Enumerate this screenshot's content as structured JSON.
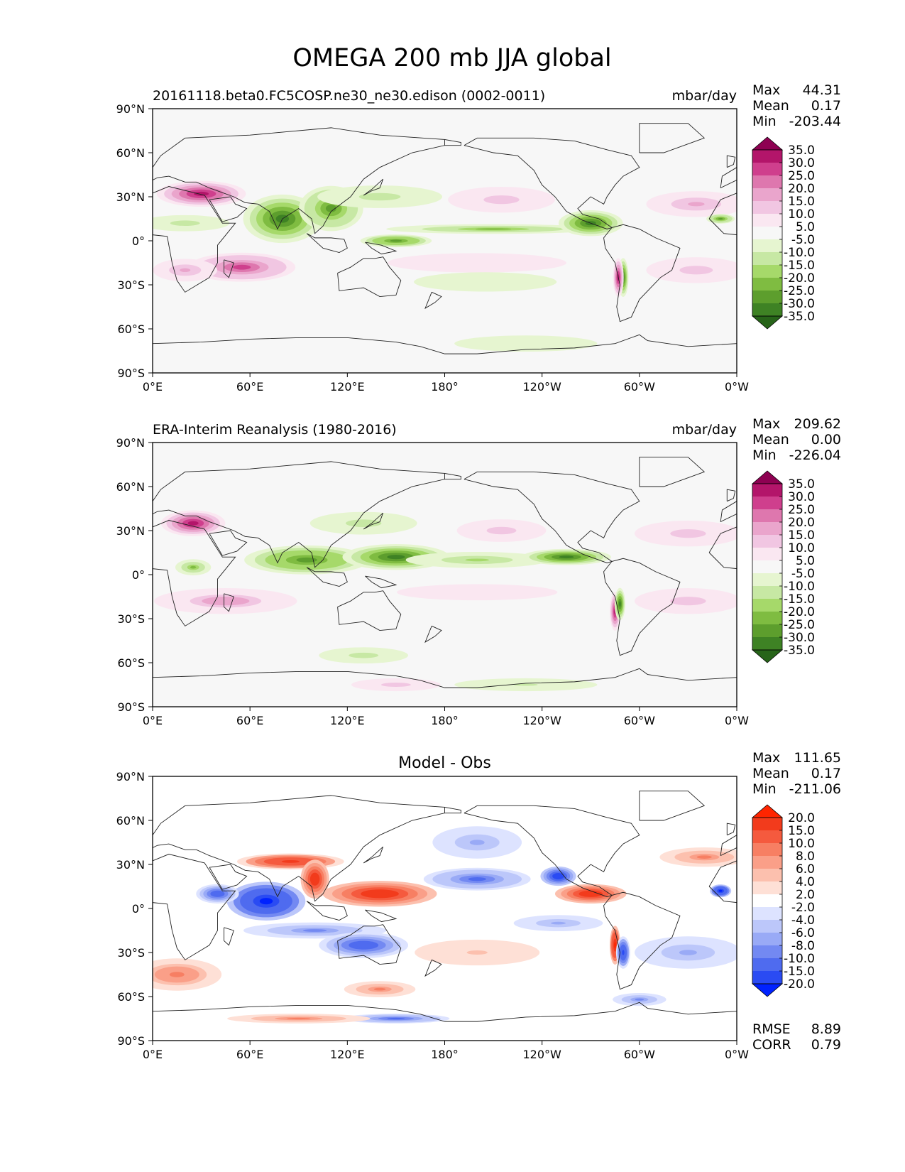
{
  "figure": {
    "title": "OMEGA 200 mb JJA global"
  },
  "axes": {
    "lon_ticks": [
      "0°E",
      "60°E",
      "120°E",
      "180°",
      "120°W",
      "60°W",
      "0°W"
    ],
    "lat_ticks": [
      "90°N",
      "60°N",
      "30°N",
      "0°",
      "30°S",
      "60°S",
      "90°S"
    ]
  },
  "chart_data": [
    {
      "type": "heatmap",
      "id": "model",
      "subtitle_left": "20161118.beta0.FC5COSP.ne30_ne30.edison (0002-0011)",
      "subtitle_center": "",
      "units": "mbar/day",
      "stats": [
        {
          "label": "Max",
          "value": "44.31"
        },
        {
          "label": "Mean",
          "value": "0.17"
        },
        {
          "label": "Min",
          "value": "-203.44"
        }
      ],
      "colorbar": {
        "levels": [
          "35.0",
          "30.0",
          "25.0",
          "20.0",
          "15.0",
          "10.0",
          "5.0",
          "-5.0",
          "-10.0",
          "-15.0",
          "-20.0",
          "-25.0",
          "-30.0",
          "-35.0"
        ],
        "colors": [
          "#8e0152",
          "#b3156a",
          "#cf3f8d",
          "#de77ae",
          "#eaa5cc",
          "#f1c6e2",
          "#fae7f1",
          "#f7f7f7",
          "#e6f5d0",
          "#c7e8a4",
          "#a6d96a",
          "#7fbc41",
          "#5d9e2d",
          "#3e8224",
          "#276419"
        ]
      },
      "blobs": [
        {
          "lon": 30,
          "lat": 32,
          "rlon": 25,
          "rlat": 8,
          "v": 32
        },
        {
          "lon": 55,
          "lat": -18,
          "rlon": 30,
          "rlat": 9,
          "v": 26
        },
        {
          "lon": 20,
          "lat": -20,
          "rlon": 18,
          "rlat": 7,
          "v": 16
        },
        {
          "lon": 20,
          "lat": 12,
          "rlon": 25,
          "rlat": 5,
          "v": -14
        },
        {
          "lon": 80,
          "lat": 15,
          "rlon": 22,
          "rlat": 15,
          "v": -33
        },
        {
          "lon": 110,
          "lat": 22,
          "rlon": 18,
          "rlat": 14,
          "v": -25
        },
        {
          "lon": 140,
          "lat": 30,
          "rlon": 35,
          "rlat": 7,
          "v": -12
        },
        {
          "lon": 150,
          "lat": 0,
          "rlon": 20,
          "rlat": 4,
          "v": -28
        },
        {
          "lon": 210,
          "lat": 8,
          "rlon": 60,
          "rlat": 3,
          "v": -20
        },
        {
          "lon": 270,
          "lat": 12,
          "rlon": 18,
          "rlat": 8,
          "v": -30
        },
        {
          "lon": 290,
          "lat": -25,
          "rlon": 3,
          "rlat": 12,
          "v": -30
        },
        {
          "lon": 287,
          "lat": -25,
          "rlon": 3,
          "rlat": 12,
          "v": 32
        },
        {
          "lon": 215,
          "lat": 28,
          "rlon": 30,
          "rlat": 8,
          "v": 12
        },
        {
          "lon": 335,
          "lat": 25,
          "rlon": 28,
          "rlat": 8,
          "v": 16
        },
        {
          "lon": 335,
          "lat": -20,
          "rlon": 28,
          "rlat": 8,
          "v": 14
        },
        {
          "lon": 200,
          "lat": -15,
          "rlon": 50,
          "rlat": 6,
          "v": 8
        },
        {
          "lon": 205,
          "lat": -28,
          "rlon": 40,
          "rlat": 6,
          "v": -7
        },
        {
          "lon": 230,
          "lat": -70,
          "rlon": 40,
          "rlat": 5,
          "v": -8
        },
        {
          "lon": 350,
          "lat": 15,
          "rlon": 8,
          "rlat": 3,
          "v": -25
        }
      ]
    },
    {
      "type": "heatmap",
      "id": "obs",
      "subtitle_left": "ERA-Interim Reanalysis (1980-2016)",
      "subtitle_center": "",
      "units": "mbar/day",
      "stats": [
        {
          "label": "Max",
          "value": "209.62"
        },
        {
          "label": "Mean",
          "value": "0.00"
        },
        {
          "label": "Min",
          "value": "-226.04"
        }
      ],
      "colorbar": {
        "levels": [
          "35.0",
          "30.0",
          "25.0",
          "20.0",
          "15.0",
          "10.0",
          "5.0",
          "-5.0",
          "-10.0",
          "-15.0",
          "-20.0",
          "-25.0",
          "-30.0",
          "-35.0"
        ],
        "colors": [
          "#8e0152",
          "#b3156a",
          "#cf3f8d",
          "#de77ae",
          "#eaa5cc",
          "#f1c6e2",
          "#fae7f1",
          "#f7f7f7",
          "#e6f5d0",
          "#c7e8a4",
          "#a6d96a",
          "#7fbc41",
          "#5d9e2d",
          "#3e8224",
          "#276419"
        ]
      },
      "blobs": [
        {
          "lon": 25,
          "lat": 35,
          "rlon": 18,
          "rlat": 8,
          "v": 34
        },
        {
          "lon": 45,
          "lat": -18,
          "rlon": 40,
          "rlat": 8,
          "v": 18
        },
        {
          "lon": 25,
          "lat": 5,
          "rlon": 10,
          "rlat": 5,
          "v": -20
        },
        {
          "lon": 95,
          "lat": 10,
          "rlon": 35,
          "rlat": 9,
          "v": -28
        },
        {
          "lon": 150,
          "lat": 12,
          "rlon": 30,
          "rlat": 8,
          "v": -30
        },
        {
          "lon": 200,
          "lat": 10,
          "rlon": 40,
          "rlat": 5,
          "v": -16
        },
        {
          "lon": 255,
          "lat": 12,
          "rlon": 25,
          "rlat": 5,
          "v": -30
        },
        {
          "lon": 130,
          "lat": 35,
          "rlon": 30,
          "rlat": 7,
          "v": -12
        },
        {
          "lon": 215,
          "lat": 30,
          "rlon": 25,
          "rlat": 7,
          "v": 14
        },
        {
          "lon": 285,
          "lat": -25,
          "rlon": 3,
          "rlat": 12,
          "v": 34
        },
        {
          "lon": 288,
          "lat": -20,
          "rlon": 3,
          "rlat": 10,
          "v": -30
        },
        {
          "lon": 330,
          "lat": 28,
          "rlon": 30,
          "rlat": 8,
          "v": 12
        },
        {
          "lon": 330,
          "lat": -18,
          "rlon": 30,
          "rlat": 8,
          "v": 12
        },
        {
          "lon": 130,
          "lat": -55,
          "rlon": 25,
          "rlat": 5,
          "v": -12
        },
        {
          "lon": 150,
          "lat": -75,
          "rlon": 25,
          "rlat": 4,
          "v": 12
        },
        {
          "lon": 230,
          "lat": -75,
          "rlon": 40,
          "rlat": 4,
          "v": -10
        },
        {
          "lon": 200,
          "lat": -12,
          "rlon": 45,
          "rlat": 5,
          "v": 9
        }
      ]
    },
    {
      "type": "heatmap",
      "id": "diff",
      "subtitle_left": "",
      "subtitle_center": "Model - Obs",
      "units": "",
      "stats": [
        {
          "label": "Max",
          "value": "111.65"
        },
        {
          "label": "Mean",
          "value": "0.17"
        },
        {
          "label": "Min",
          "value": "-211.06"
        }
      ],
      "metrics": [
        {
          "label": "RMSE",
          "value": "8.89"
        },
        {
          "label": "CORR",
          "value": "0.79"
        }
      ],
      "colorbar": {
        "levels": [
          "20.0",
          "15.0",
          "10.0",
          "8.0",
          "6.0",
          "4.0",
          "2.0",
          "-2.0",
          "-4.0",
          "-6.0",
          "-8.0",
          "-10.0",
          "-15.0",
          "-20.0"
        ],
        "colors": [
          "#ff2500",
          "#f23b1c",
          "#f55a3e",
          "#f77f63",
          "#fa9f88",
          "#fcc0ae",
          "#fee0d6",
          "#ffffff",
          "#dde3ff",
          "#bcc7fa",
          "#99aaf6",
          "#7389f2",
          "#4f6bef",
          "#2a4bf3",
          "#0022ff"
        ]
      },
      "blobs": [
        {
          "lon": 70,
          "lat": 5,
          "rlon": 22,
          "rlat": 12,
          "v": -20
        },
        {
          "lon": 140,
          "lat": 10,
          "rlon": 32,
          "rlat": 8,
          "v": 18
        },
        {
          "lon": 200,
          "lat": 20,
          "rlon": 30,
          "rlat": 7,
          "v": -10
        },
        {
          "lon": 100,
          "lat": -15,
          "rlon": 40,
          "rlat": 5,
          "v": -8
        },
        {
          "lon": 130,
          "lat": -25,
          "rlon": 25,
          "rlat": 8,
          "v": -12
        },
        {
          "lon": 270,
          "lat": 10,
          "rlon": 20,
          "rlat": 6,
          "v": 18
        },
        {
          "lon": 250,
          "lat": 22,
          "rlon": 10,
          "rlat": 6,
          "v": -18
        },
        {
          "lon": 285,
          "lat": -25,
          "rlon": 3,
          "rlat": 12,
          "v": 20
        },
        {
          "lon": 290,
          "lat": -30,
          "rlon": 4,
          "rlat": 10,
          "v": -15
        },
        {
          "lon": 350,
          "lat": 12,
          "rlon": 6,
          "rlat": 4,
          "v": -20
        },
        {
          "lon": 15,
          "lat": -45,
          "rlon": 25,
          "rlat": 10,
          "v": 9
        },
        {
          "lon": 85,
          "lat": 32,
          "rlon": 30,
          "rlat": 5,
          "v": 15
        },
        {
          "lon": 40,
          "lat": 10,
          "rlon": 12,
          "rlat": 6,
          "v": -12
        },
        {
          "lon": 100,
          "lat": 20,
          "rlon": 8,
          "rlat": 12,
          "v": 18
        },
        {
          "lon": 330,
          "lat": -30,
          "rlon": 30,
          "rlat": 10,
          "v": -6
        },
        {
          "lon": 200,
          "lat": -30,
          "rlon": 35,
          "rlat": 8,
          "v": 4
        },
        {
          "lon": 250,
          "lat": -10,
          "rlon": 25,
          "rlat": 5,
          "v": -6
        },
        {
          "lon": 140,
          "lat": -55,
          "rlon": 20,
          "rlat": 5,
          "v": 8
        },
        {
          "lon": 150,
          "lat": -75,
          "rlon": 30,
          "rlat": 3,
          "v": -10
        },
        {
          "lon": 90,
          "lat": -75,
          "rlon": 40,
          "rlat": 3,
          "v": 8
        },
        {
          "lon": 300,
          "lat": -62,
          "rlon": 15,
          "rlat": 4,
          "v": -8
        },
        {
          "lon": 200,
          "lat": 45,
          "rlon": 25,
          "rlat": 10,
          "v": -6
        },
        {
          "lon": 340,
          "lat": 35,
          "rlon": 25,
          "rlat": 6,
          "v": 8
        }
      ]
    }
  ]
}
